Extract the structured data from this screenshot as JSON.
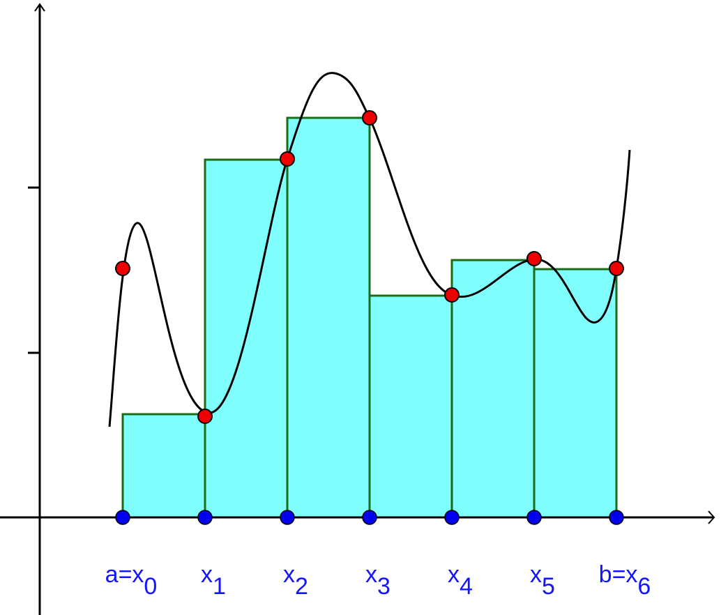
{
  "labels": [
    {
      "main": "a=x",
      "sub": "0"
    },
    {
      "main": "x",
      "sub": "1"
    },
    {
      "main": "x",
      "sub": "2"
    },
    {
      "main": "x",
      "sub": "3"
    },
    {
      "main": "x",
      "sub": "4"
    },
    {
      "main": "x",
      "sub": "5"
    },
    {
      "main": "b=x",
      "sub": "6"
    }
  ]
}
